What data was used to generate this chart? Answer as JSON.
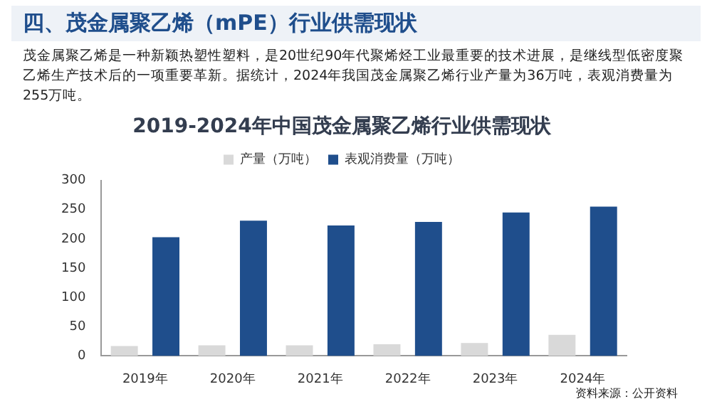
{
  "chart_data": {
    "type": "bar",
    "title": "2019-2024年中国茂金属聚乙烯行业供需现状",
    "annotations": [
      "四、茂金属聚乙烯（mPE）行业供需现状",
      "茂金属聚乙烯是一种新颖热塑性塑料，是20世纪90年代聚烯烃工业最重要的技术进展，是继线型低密度聚乙烯生产技术后的一项重要革新。据统计，2024年我国茂金属聚乙烯行业产量为36万吨，表观消费量为255万吨。",
      "资料来源：公开资料"
    ],
    "categories": [
      "2019年",
      "2020年",
      "2021年",
      "2022年",
      "2023年",
      "2024年"
    ],
    "series": [
      {
        "name": "产量（万吨）",
        "color": "#d9d9d9",
        "values": [
          17,
          18,
          18,
          20,
          22,
          36
        ]
      },
      {
        "name": "表观消费量（万吨）",
        "color": "#1f4e8c",
        "values": [
          203,
          231,
          223,
          229,
          245,
          255
        ]
      }
    ],
    "ylim": [
      0,
      300
    ],
    "yticks": [
      0,
      50,
      100,
      150,
      200,
      250,
      300
    ],
    "grid": false,
    "legend": "top"
  }
}
